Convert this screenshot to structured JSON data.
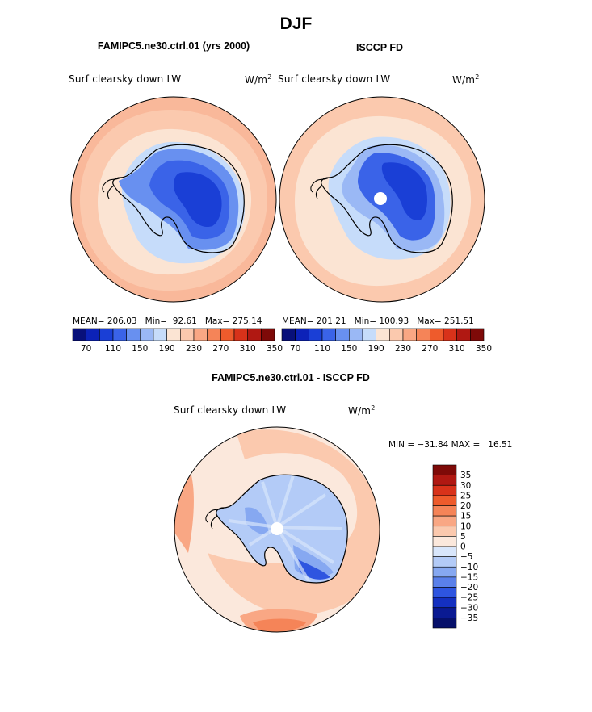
{
  "page_title": "DJF",
  "colors": {
    "stats_coast": "#000000",
    "missing": "#ffffff"
  },
  "chart_data": [
    {
      "type": "heatmap",
      "projection": "south polar stereographic",
      "title": "FAMIPC5.ne30.ctrl.01 (yrs 2000)",
      "variable_label": "Surf clearsky down LW",
      "units_base": "W/m",
      "units_exp": "2",
      "stats": {
        "mean_label": "MEAN=",
        "mean": "206.03",
        "min_label": "Min=",
        "min": "92.61",
        "max_label": "Max=",
        "max": "275.14"
      },
      "colorbar": {
        "orientation": "horizontal",
        "levels": [
          "70",
          "110",
          "150",
          "190",
          "230",
          "270",
          "310",
          "350"
        ],
        "colors": [
          "#08107a",
          "#0c22b8",
          "#1a3fd6",
          "#3a63e8",
          "#6890f0",
          "#9ab8f5",
          "#c6dcfa",
          "#fbe4d3",
          "#fbc9ae",
          "#f9a784",
          "#f58458",
          "#ee5b2c",
          "#d8321a",
          "#b01812",
          "#7e0a08"
        ]
      }
    },
    {
      "type": "heatmap",
      "projection": "south polar stereographic",
      "title": "ISCCP FD",
      "variable_label": "Surf clearsky down LW",
      "units_base": "W/m",
      "units_exp": "2",
      "stats": {
        "mean_label": "MEAN=",
        "mean": "201.21",
        "min_label": "Min=",
        "min": "100.93",
        "max_label": "Max=",
        "max": "251.51"
      },
      "colorbar": {
        "orientation": "horizontal",
        "levels": [
          "70",
          "110",
          "150",
          "190",
          "230",
          "270",
          "310",
          "350"
        ],
        "colors": [
          "#08107a",
          "#0c22b8",
          "#1a3fd6",
          "#3a63e8",
          "#6890f0",
          "#9ab8f5",
          "#c6dcfa",
          "#fbe4d3",
          "#fbc9ae",
          "#f9a784",
          "#f58458",
          "#ee5b2c",
          "#d8321a",
          "#b01812",
          "#7e0a08"
        ]
      }
    },
    {
      "type": "heatmap",
      "projection": "south polar stereographic",
      "title": "FAMIPC5.ne30.ctrl.01 - ISCCP FD",
      "variable_label": "Surf clearsky down LW",
      "units_base": "W/m",
      "units_exp": "2",
      "stats_text": "MIN = −31.84 MAX =   16.51",
      "colorbar": {
        "orientation": "vertical",
        "levels": [
          "35",
          "30",
          "25",
          "20",
          "15",
          "10",
          "5",
          "0",
          "−5",
          "−10",
          "−15",
          "−20",
          "−25",
          "−30",
          "−35"
        ],
        "colors": [
          "#7e0a08",
          "#b01812",
          "#d8321a",
          "#ee5b2c",
          "#f58458",
          "#f9a784",
          "#fbc9ae",
          "#fbe8dc",
          "#d8e6fb",
          "#b3cbf7",
          "#86a8f1",
          "#5a80ea",
          "#2e55e0",
          "#1430c0",
          "#0a1a92",
          "#06106a"
        ]
      }
    }
  ]
}
